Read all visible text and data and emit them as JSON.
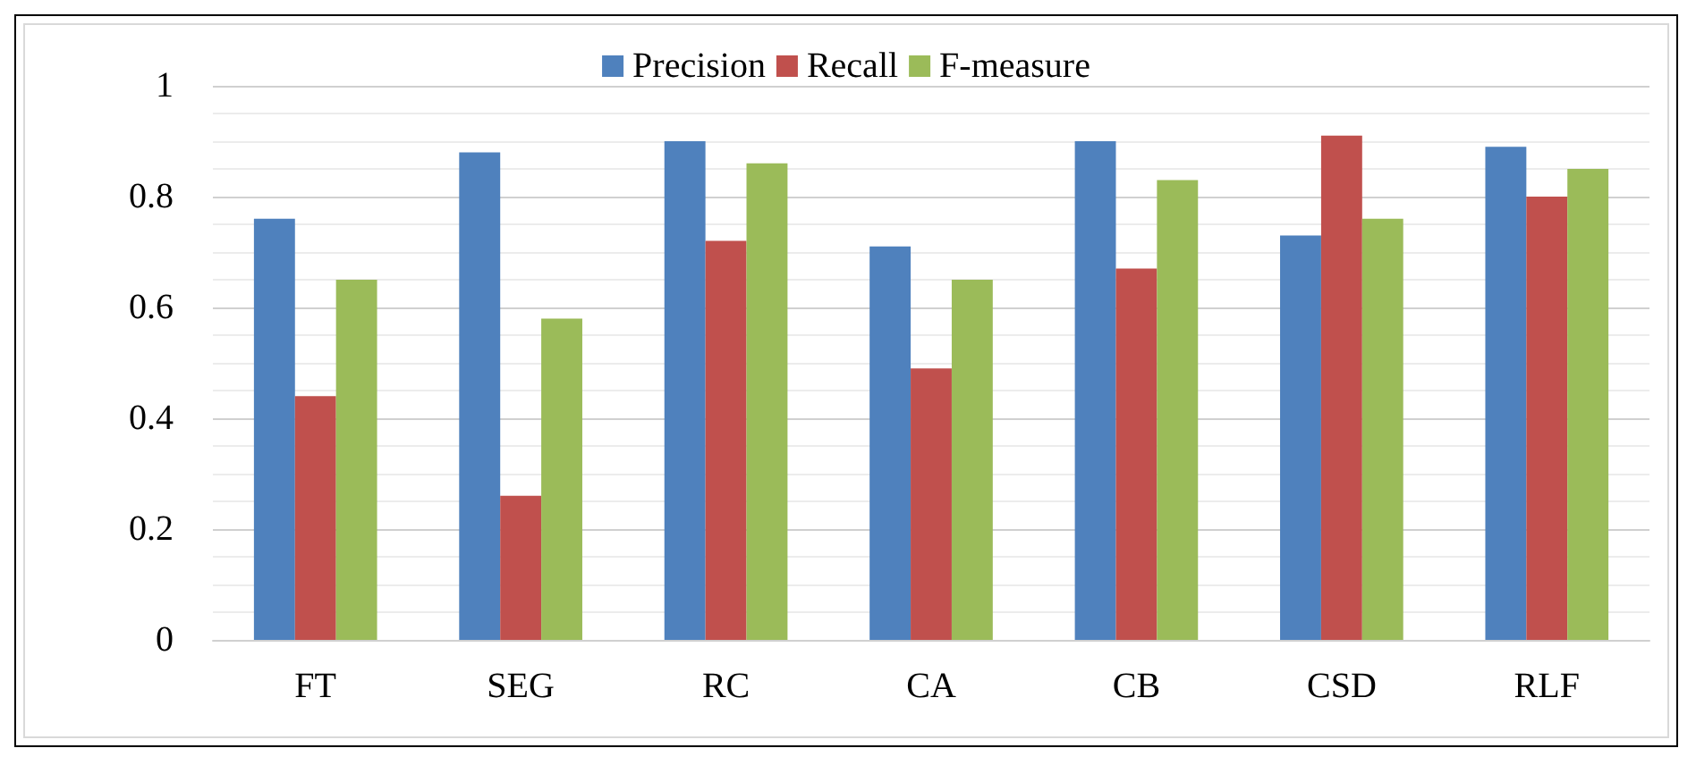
{
  "chart_data": {
    "type": "bar",
    "categories": [
      "FT",
      "SEG",
      "RC",
      "CA",
      "CB",
      "CSD",
      "RLF"
    ],
    "series": [
      {
        "name": "Precision",
        "color": "#4f81bd",
        "values": [
          0.76,
          0.88,
          0.9,
          0.71,
          0.9,
          0.73,
          0.89
        ]
      },
      {
        "name": "Recall",
        "color": "#c0504d",
        "values": [
          0.44,
          0.26,
          0.72,
          0.49,
          0.67,
          0.91,
          0.8
        ]
      },
      {
        "name": "F-measure",
        "color": "#9bbb59",
        "values": [
          0.65,
          0.58,
          0.86,
          0.65,
          0.83,
          0.76,
          0.85
        ]
      }
    ],
    "ylim": [
      0,
      1
    ],
    "yticks": [
      0,
      0.2,
      0.4,
      0.6,
      0.8,
      1
    ],
    "grid": "y",
    "legend": "top"
  }
}
